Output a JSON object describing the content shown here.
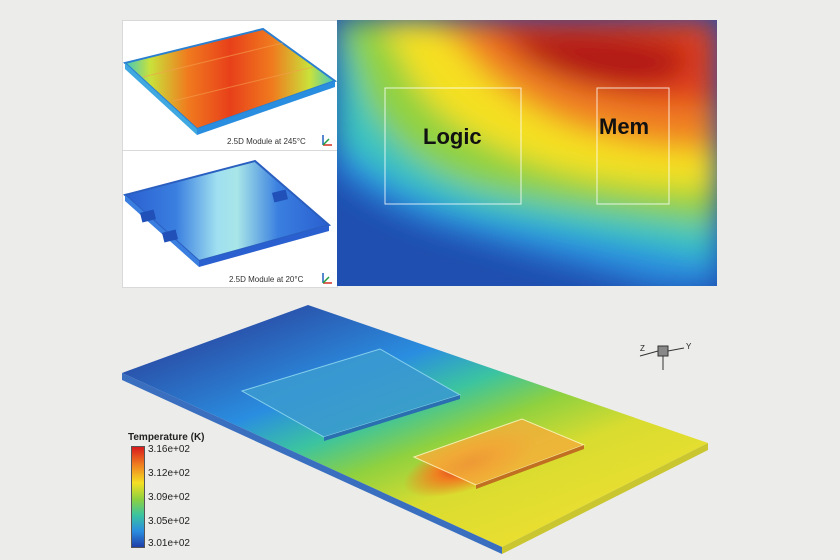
{
  "top_left": {
    "caption": "2.5D Module at 245°C"
  },
  "bottom_left": {
    "caption": "2.5D Module at 20°C"
  },
  "heatmap": {
    "label_logic": "Logic",
    "label_mem": "Mem"
  },
  "legend": {
    "title": "Temperature (K)",
    "ticks": [
      "3.16e+02",
      "3.12e+02",
      "3.09e+02",
      "3.05e+02",
      "3.01e+02"
    ]
  },
  "axes": {
    "z": "Z",
    "y": "Y"
  },
  "colors": {
    "hot": "#d7191c",
    "warm": "#f5e023",
    "mid": "#8fd13f",
    "cool": "#2a8ee0",
    "cold": "#1f3fa8"
  }
}
